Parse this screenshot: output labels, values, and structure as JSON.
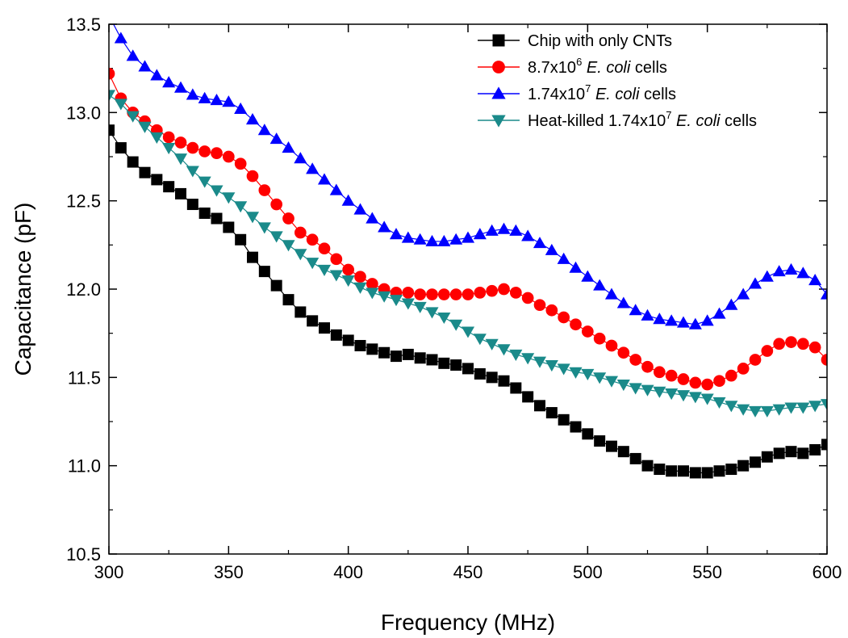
{
  "chart_data": {
    "type": "line",
    "xlabel": "Frequency (MHz)",
    "ylabel": "Capacitance (pF)",
    "xlim": [
      300,
      600
    ],
    "ylim": [
      10.5,
      13.5
    ],
    "x_ticks": [
      300,
      350,
      400,
      450,
      500,
      550,
      600
    ],
    "x_tick_labels": [
      "300",
      "350",
      "400",
      "450",
      "500",
      "550",
      "600"
    ],
    "y_ticks": [
      10.5,
      11.0,
      11.5,
      12.0,
      12.5,
      13.0,
      13.5
    ],
    "y_tick_labels": [
      "10.5",
      "11.0",
      "11.5",
      "12.0",
      "12.5",
      "13.0",
      "13.5"
    ],
    "grid": false,
    "legend_position": "top-right",
    "x": [
      300,
      305,
      310,
      315,
      320,
      325,
      330,
      335,
      340,
      345,
      350,
      355,
      360,
      365,
      370,
      375,
      380,
      385,
      390,
      395,
      400,
      405,
      410,
      415,
      420,
      425,
      430,
      435,
      440,
      445,
      450,
      455,
      460,
      465,
      470,
      475,
      480,
      485,
      490,
      495,
      500,
      505,
      510,
      515,
      520,
      525,
      530,
      535,
      540,
      545,
      550,
      555,
      560,
      565,
      570,
      575,
      580,
      585,
      590,
      595,
      600
    ],
    "series": [
      {
        "name": "Chip with only CNTs",
        "legend": {
          "pre": "Chip with only CNTs",
          "sup": "",
          "italic": "",
          "post": ""
        },
        "color": "#000000",
        "marker": "square",
        "values": [
          12.9,
          12.8,
          12.72,
          12.66,
          12.62,
          12.58,
          12.54,
          12.48,
          12.43,
          12.4,
          12.35,
          12.28,
          12.18,
          12.1,
          12.02,
          11.94,
          11.87,
          11.82,
          11.78,
          11.74,
          11.71,
          11.68,
          11.66,
          11.64,
          11.62,
          11.63,
          11.61,
          11.6,
          11.58,
          11.57,
          11.55,
          11.52,
          11.5,
          11.48,
          11.44,
          11.39,
          11.34,
          11.3,
          11.26,
          11.22,
          11.18,
          11.14,
          11.11,
          11.08,
          11.04,
          11.0,
          10.98,
          10.97,
          10.97,
          10.96,
          10.96,
          10.97,
          10.98,
          11.0,
          11.02,
          11.05,
          11.07,
          11.08,
          11.07,
          11.09,
          11.12
        ]
      },
      {
        "name": "8.7x10⁶ E. coli cells",
        "legend": {
          "pre": "8.7x10",
          "sup": "6",
          "italic": "E. coli",
          "post": " cells"
        },
        "color": "#ff0000",
        "marker": "circle",
        "values": [
          13.22,
          13.08,
          13.0,
          12.95,
          12.9,
          12.86,
          12.83,
          12.8,
          12.78,
          12.77,
          12.75,
          12.71,
          12.64,
          12.56,
          12.48,
          12.4,
          12.32,
          12.28,
          12.23,
          12.17,
          12.11,
          12.07,
          12.03,
          12.0,
          11.98,
          11.98,
          11.97,
          11.97,
          11.97,
          11.97,
          11.97,
          11.98,
          11.99,
          12.0,
          11.98,
          11.95,
          11.91,
          11.88,
          11.84,
          11.8,
          11.76,
          11.72,
          11.68,
          11.64,
          11.6,
          11.56,
          11.53,
          11.51,
          11.49,
          11.47,
          11.46,
          11.48,
          11.51,
          11.55,
          11.6,
          11.65,
          11.69,
          11.7,
          11.69,
          11.67,
          11.6
        ]
      },
      {
        "name": "1.74x10⁷ E. coli cells",
        "legend": {
          "pre": "1.74x10",
          "sup": "7",
          "italic": "E. coli",
          "post": " cells"
        },
        "color": "#0000ff",
        "marker": "triangle-up",
        "values": [
          13.55,
          13.42,
          13.32,
          13.26,
          13.21,
          13.17,
          13.14,
          13.1,
          13.08,
          13.07,
          13.06,
          13.02,
          12.96,
          12.9,
          12.85,
          12.8,
          12.74,
          12.68,
          12.62,
          12.56,
          12.5,
          12.45,
          12.4,
          12.35,
          12.31,
          12.29,
          12.28,
          12.27,
          12.27,
          12.28,
          12.29,
          12.31,
          12.33,
          12.34,
          12.33,
          12.3,
          12.26,
          12.22,
          12.17,
          12.12,
          12.07,
          12.02,
          11.97,
          11.92,
          11.88,
          11.85,
          11.83,
          11.82,
          11.81,
          11.8,
          11.82,
          11.86,
          11.91,
          11.97,
          12.03,
          12.07,
          12.1,
          12.11,
          12.09,
          12.05,
          11.97
        ]
      },
      {
        "name": "Heat-killed 1.74x10⁷ E. coli cells",
        "legend": {
          "pre": "Heat-killed 1.74x10",
          "sup": "7",
          "italic": "E. coli",
          "post": " cells"
        },
        "color": "#1a8a8a",
        "marker": "triangle-down",
        "values": [
          13.1,
          13.05,
          12.98,
          12.92,
          12.86,
          12.8,
          12.74,
          12.67,
          12.61,
          12.56,
          12.52,
          12.47,
          12.41,
          12.35,
          12.3,
          12.25,
          12.2,
          12.15,
          12.11,
          12.08,
          12.05,
          12.01,
          11.98,
          11.96,
          11.94,
          11.92,
          11.9,
          11.87,
          11.84,
          11.8,
          11.76,
          11.72,
          11.69,
          11.66,
          11.63,
          11.61,
          11.59,
          11.57,
          11.55,
          11.53,
          11.52,
          11.5,
          11.48,
          11.46,
          11.44,
          11.43,
          11.42,
          11.41,
          11.4,
          11.39,
          11.38,
          11.36,
          11.34,
          11.32,
          11.31,
          11.31,
          11.32,
          11.33,
          11.33,
          11.34,
          11.35
        ]
      }
    ]
  }
}
